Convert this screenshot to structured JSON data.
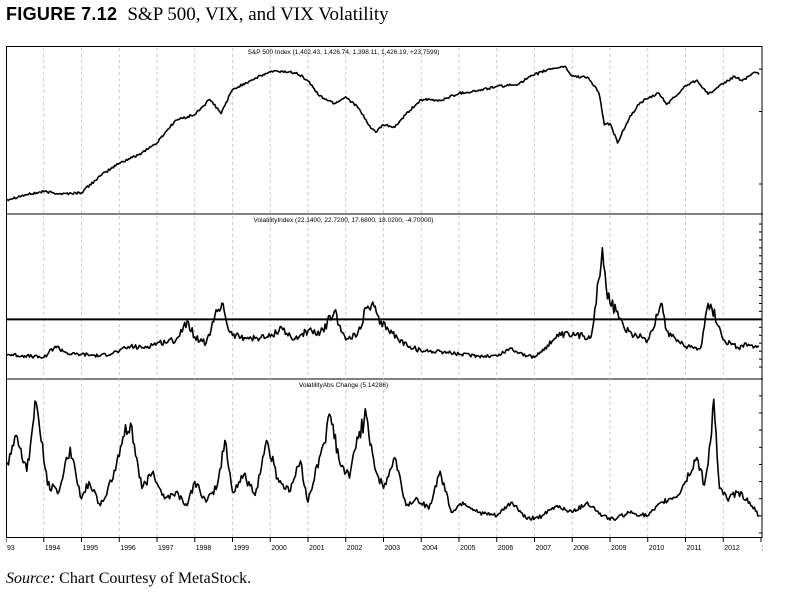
{
  "figure": {
    "number": "FIGURE 7.12",
    "title": "S&P 500, VIX, and VIX Volatility"
  },
  "source": {
    "label": "Source:",
    "text": "Chart Courtesy of MetaStock."
  },
  "colors": {
    "line": "#000000",
    "grid": "#bdbdbd",
    "background": "#ffffff"
  },
  "x_axis": {
    "year_labels": [
      "93",
      "1994",
      "1995",
      "1996",
      "1997",
      "1998",
      "1999",
      "2000",
      "2001",
      "2002",
      "2003",
      "2004",
      "2005",
      "2006",
      "2007",
      "2008",
      "2009",
      "2010",
      "2011",
      "2012",
      "2"
    ],
    "range": [
      1993.0,
      2013.0
    ]
  },
  "chart_data": [
    {
      "type": "line",
      "title": "S&P 500 Index (1,402.43, 1,426.74, 1,398.11, 1,426.19, +23.7599)",
      "log_scale": true,
      "ylim": [
        390,
        1700
      ],
      "y_ticks": [
        500,
        1000,
        1500
      ],
      "grid": "vertical dashed at year boundaries",
      "series": [
        {
          "x": [
            1993.0,
            1993.5,
            1994.0,
            1994.5,
            1995.0,
            1995.5,
            1996.0,
            1996.5,
            1997.0,
            1997.5,
            1998.0,
            1998.4,
            1998.7,
            1999.0,
            1999.5,
            2000.0,
            2000.2,
            2000.7,
            2001.0,
            2001.3,
            2001.7,
            2002.0,
            2002.3,
            2002.6,
            2002.8,
            2003.0,
            2003.3,
            2003.7,
            2004.0,
            2004.5,
            2005.0,
            2005.5,
            2006.0,
            2006.5,
            2007.0,
            2007.4,
            2007.8,
            2008.0,
            2008.4,
            2008.7,
            2008.85,
            2009.0,
            2009.2,
            2009.5,
            2009.8,
            2010.0,
            2010.3,
            2010.5,
            2010.8,
            2011.0,
            2011.3,
            2011.6,
            2011.8,
            2012.0,
            2012.3,
            2012.5,
            2012.8,
            2012.95
          ],
          "y": [
            430,
            450,
            465,
            455,
            460,
            540,
            610,
            660,
            740,
            920,
            970,
            1120,
            980,
            1230,
            1350,
            1460,
            1470,
            1450,
            1340,
            1160,
            1080,
            1150,
            1050,
            880,
            820,
            880,
            860,
            1010,
            1120,
            1110,
            1190,
            1220,
            1270,
            1290,
            1420,
            1500,
            1540,
            1400,
            1390,
            1200,
            880,
            890,
            740,
            930,
            1090,
            1130,
            1190,
            1070,
            1180,
            1280,
            1350,
            1180,
            1240,
            1300,
            1400,
            1340,
            1450,
            1426
          ]
        }
      ]
    },
    {
      "type": "line",
      "title": "VolatilityIndex (22.1400, 22.7200, 17.6800, 18.0200, -4.70000)",
      "ylim": [
        0,
        95
      ],
      "y_ticks": [
        5,
        10,
        15,
        20,
        25,
        30,
        35,
        40,
        45,
        50,
        55,
        60,
        65,
        70,
        75,
        80,
        85,
        90,
        95
      ],
      "reference_line": 35,
      "series": [
        {
          "x": [
            1993.0,
            1993.5,
            1994.0,
            1994.3,
            1994.7,
            1995.0,
            1995.5,
            1996.0,
            1996.3,
            1996.6,
            1997.0,
            1997.5,
            1997.8,
            1998.0,
            1998.3,
            1998.6,
            1998.75,
            1998.9,
            1999.0,
            1999.5,
            2000.0,
            2000.3,
            2000.6,
            2001.0,
            2001.3,
            2001.7,
            2001.85,
            2002.0,
            2002.3,
            2002.55,
            2002.75,
            2002.9,
            2003.1,
            2003.4,
            2003.7,
            2004.0,
            2004.5,
            2005.0,
            2005.5,
            2006.0,
            2006.4,
            2006.5,
            2006.8,
            2007.0,
            2007.5,
            2007.7,
            2008.0,
            2008.5,
            2008.7,
            2008.8,
            2008.9,
            2009.0,
            2009.2,
            2009.4,
            2009.7,
            2010.0,
            2010.35,
            2010.5,
            2010.8,
            2011.0,
            2011.4,
            2011.6,
            2011.7,
            2011.9,
            2012.0,
            2012.4,
            2012.6,
            2012.8,
            2012.95
          ],
          "y": [
            13,
            12,
            11,
            18,
            13,
            13,
            12,
            15,
            18,
            17,
            20,
            22,
            34,
            24,
            20,
            40,
            45,
            28,
            25,
            23,
            24,
            30,
            22,
            28,
            25,
            40,
            31,
            22,
            25,
            42,
            43,
            32,
            30,
            22,
            18,
            15,
            15,
            13,
            12,
            12,
            17,
            15,
            12,
            11,
            22,
            25,
            25,
            24,
            60,
            80,
            55,
            45,
            40,
            28,
            25,
            22,
            45,
            28,
            22,
            18,
            17,
            45,
            42,
            30,
            22,
            17,
            20,
            17,
            18
          ]
        }
      ]
    },
    {
      "type": "line",
      "title": "VolatilityAbs Change (5.14286)",
      "ylim": [
        0,
        42
      ],
      "y_ticks": [
        0,
        5,
        10,
        15,
        20,
        25,
        30,
        35,
        40
      ],
      "series": [
        {
          "x": [
            1993.0,
            1993.3,
            1993.55,
            1993.8,
            1994.1,
            1994.4,
            1994.7,
            1995.0,
            1995.2,
            1995.5,
            1995.8,
            1996.1,
            1996.3,
            1996.6,
            1996.9,
            1997.2,
            1997.5,
            1997.8,
            1998.0,
            1998.3,
            1998.6,
            1998.8,
            1999.0,
            1999.3,
            1999.6,
            1999.9,
            2000.2,
            2000.5,
            2000.8,
            2001.0,
            2001.3,
            2001.6,
            2001.85,
            2002.1,
            2002.3,
            2002.55,
            2002.8,
            2003.0,
            2003.3,
            2003.6,
            2003.9,
            2004.2,
            2004.5,
            2004.8,
            2005.1,
            2005.5,
            2006.0,
            2006.4,
            2006.8,
            2007.2,
            2007.6,
            2008.0,
            2008.4,
            2008.8,
            2009.1,
            2009.5,
            2010.0,
            2010.4,
            2010.8,
            2011.0,
            2011.3,
            2011.5,
            2011.6,
            2011.75,
            2011.9,
            2012.1,
            2012.4,
            2012.7,
            2012.95
          ],
          "y": [
            20,
            28,
            18,
            38,
            14,
            12,
            25,
            10,
            15,
            8,
            15,
            28,
            32,
            13,
            18,
            10,
            12,
            8,
            15,
            9,
            14,
            27,
            12,
            17,
            11,
            27,
            16,
            12,
            21,
            9,
            22,
            34,
            20,
            16,
            28,
            34,
            18,
            13,
            22,
            8,
            10,
            7,
            18,
            6,
            9,
            6,
            5,
            9,
            4,
            5,
            8,
            6,
            9,
            5,
            4,
            6,
            5,
            9,
            11,
            15,
            22,
            14,
            20,
            39,
            13,
            10,
            12,
            9,
            5
          ]
        }
      ]
    }
  ]
}
